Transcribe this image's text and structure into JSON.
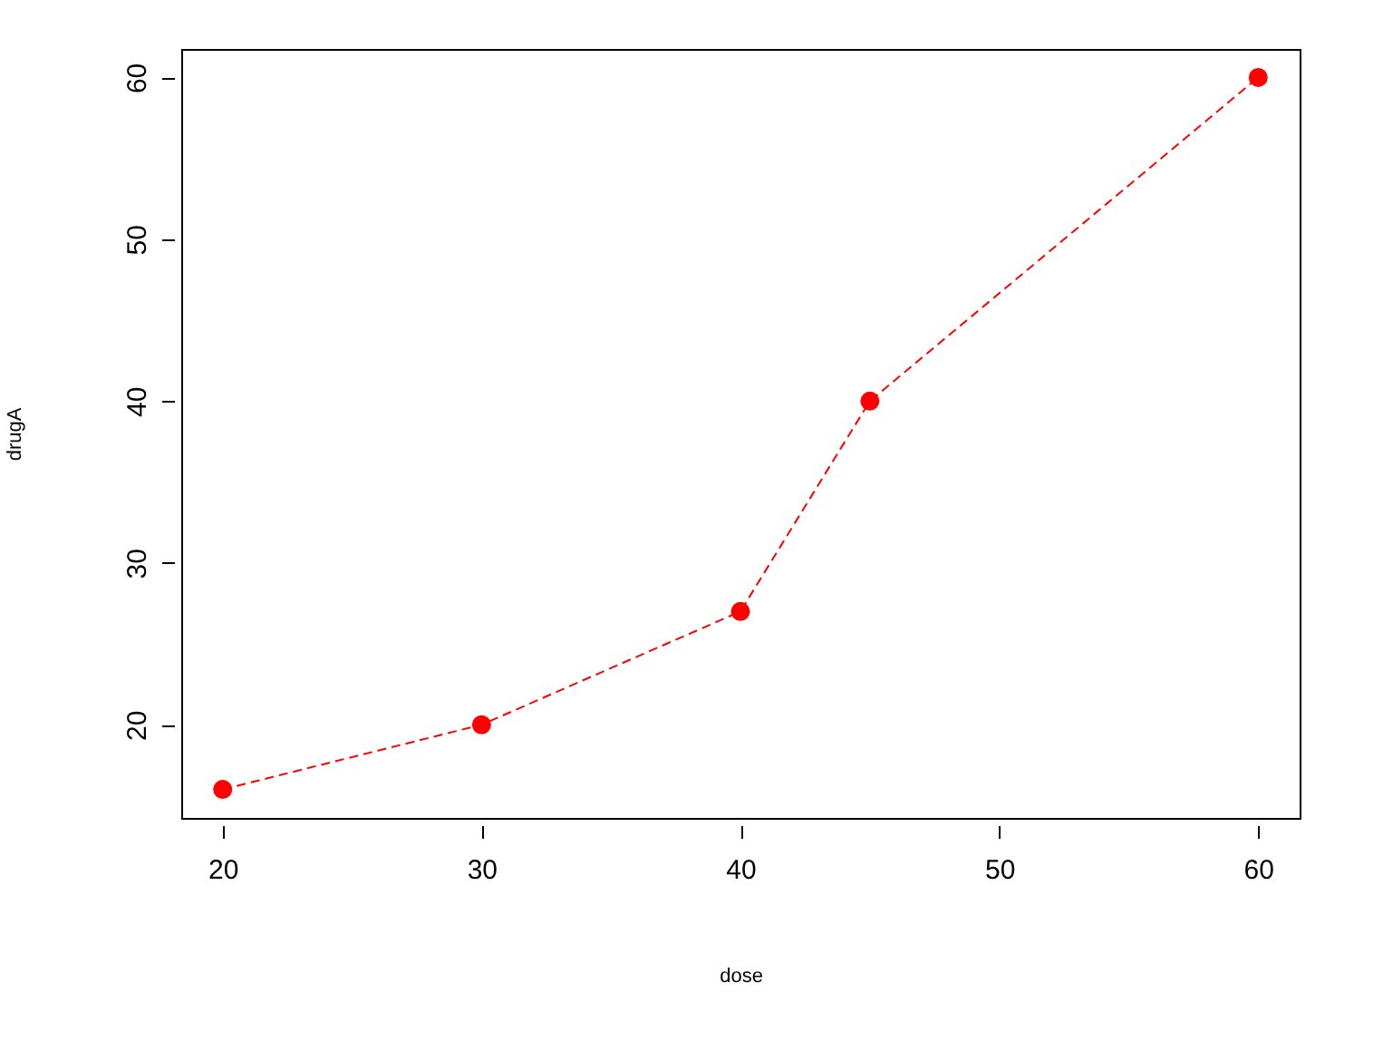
{
  "chart_data": {
    "type": "line",
    "x": [
      20,
      30,
      40,
      45,
      60
    ],
    "series": [
      {
        "color": "#ff0000",
        "values": [
          16,
          20,
          27,
          40,
          60
        ]
      }
    ],
    "xlabel": "dose",
    "ylabel": "drugA",
    "xlim": [
      18.4,
      61.6
    ],
    "ylim": [
      14.24,
      61.76
    ],
    "xticks": [
      20,
      30,
      40,
      50,
      60
    ],
    "yticks": [
      20,
      30,
      40,
      50,
      60
    ],
    "marker": "circle",
    "line_style": "dashed",
    "grid": false
  }
}
